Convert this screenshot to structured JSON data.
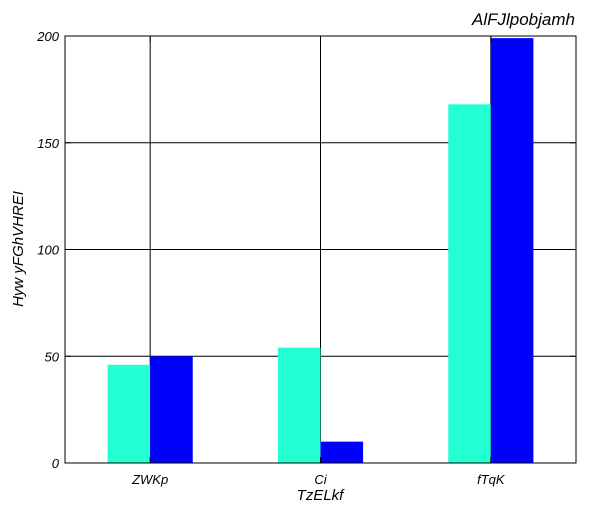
{
  "chart_data": {
    "type": "bar",
    "title": "AlFJlpobjamh",
    "xlabel": "TzELkf",
    "ylabel": "Hyw  yFGhVHREI",
    "categories": [
      "ZWKp",
      "Ci",
      "fTqK"
    ],
    "series": [
      {
        "color": "#22ffd2",
        "values": [
          46,
          54,
          168
        ]
      },
      {
        "color": "#0000ff",
        "values": [
          50,
          10,
          199
        ]
      }
    ],
    "ylim": [
      0,
      200
    ],
    "yticks": [
      0,
      50,
      100,
      150,
      200
    ],
    "grid": true
  }
}
